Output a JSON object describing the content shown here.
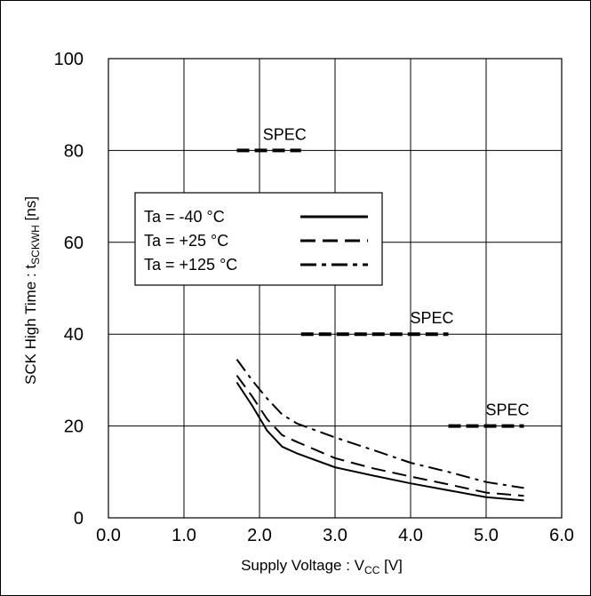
{
  "chart_data": {
    "type": "line",
    "title": "",
    "xlabel": {
      "main": "Supply Voltage : V",
      "sub": "CC",
      "tail": " [V]"
    },
    "ylabel": {
      "main": "SCK High Time : t",
      "sub": "SCKWH",
      "tail": " [ns]"
    },
    "xlim": [
      0,
      6
    ],
    "ylim": [
      0,
      100
    ],
    "x_ticks": [
      {
        "value": 0,
        "label": "0.0"
      },
      {
        "value": 1,
        "label": "1.0"
      },
      {
        "value": 2,
        "label": "2.0"
      },
      {
        "value": 3,
        "label": "3.0"
      },
      {
        "value": 4,
        "label": "4.0"
      },
      {
        "value": 5,
        "label": "5.0"
      },
      {
        "value": 6,
        "label": "6.0"
      }
    ],
    "y_ticks": [
      {
        "value": 0,
        "label": "0"
      },
      {
        "value": 20,
        "label": "20"
      },
      {
        "value": 40,
        "label": "40"
      },
      {
        "value": 60,
        "label": "60"
      },
      {
        "value": 80,
        "label": "80"
      },
      {
        "value": 100,
        "label": "100"
      }
    ],
    "grid": true,
    "legend_position": "upper-left",
    "series": [
      {
        "name": "Ta = -40 °C",
        "style": "solid",
        "color": "#000000",
        "points": [
          [
            1.7,
            29.5
          ],
          [
            1.9,
            24.5
          ],
          [
            2.1,
            19
          ],
          [
            2.3,
            15.5
          ],
          [
            2.5,
            14
          ],
          [
            3.0,
            11
          ],
          [
            3.5,
            9.2
          ],
          [
            4.0,
            7.5
          ],
          [
            4.5,
            6
          ],
          [
            5.0,
            4.5
          ],
          [
            5.5,
            3.8
          ]
        ]
      },
      {
        "name": "Ta = +25 °C",
        "style": "dashed",
        "color": "#000000",
        "points": [
          [
            1.7,
            31
          ],
          [
            1.9,
            26.5
          ],
          [
            2.1,
            21.5
          ],
          [
            2.3,
            18
          ],
          [
            2.5,
            16.5
          ],
          [
            3.0,
            13
          ],
          [
            3.5,
            10.8
          ],
          [
            4.0,
            9
          ],
          [
            4.5,
            7.3
          ],
          [
            5.0,
            5.5
          ],
          [
            5.5,
            4.8
          ]
        ]
      },
      {
        "name": "Ta = +125 °C",
        "style": "dashdot",
        "color": "#000000",
        "points": [
          [
            1.7,
            34.5
          ],
          [
            1.9,
            30
          ],
          [
            2.1,
            26
          ],
          [
            2.3,
            22.5
          ],
          [
            2.5,
            20.5
          ],
          [
            3.0,
            17.5
          ],
          [
            3.5,
            14.8
          ],
          [
            4.0,
            12
          ],
          [
            4.5,
            10
          ],
          [
            5.0,
            7.8
          ],
          [
            5.5,
            6.5
          ]
        ]
      }
    ],
    "spec_lines": [
      {
        "label": "SPEC",
        "x_start": 1.7,
        "x_end": 2.55,
        "y": 80
      },
      {
        "label": "SPEC",
        "x_start": 2.55,
        "x_end": 4.5,
        "y": 40
      },
      {
        "label": "SPEC",
        "x_start": 4.5,
        "x_end": 5.5,
        "y": 20
      }
    ]
  }
}
